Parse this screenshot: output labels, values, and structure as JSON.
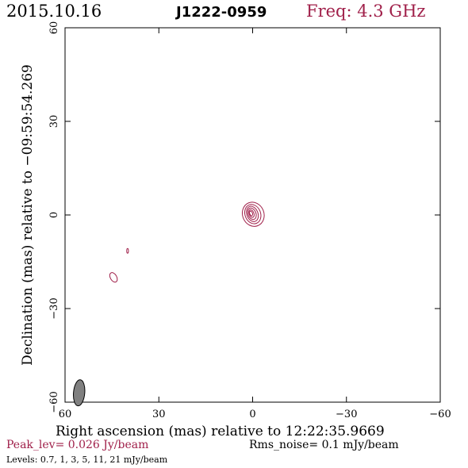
{
  "header": {
    "date": "2015.10.16",
    "source": "J1222-0959",
    "freq": "Freq: 4.3 GHz"
  },
  "colors": {
    "contour": "#a0204a",
    "text": "#000000",
    "beam": "#808080"
  },
  "chart_data": {
    "type": "contour",
    "xlabel": "Right ascension (mas) relative to 12:22:35.9669",
    "ylabel": "Declination (mas) relative to −09:59:54.269",
    "xlim": [
      60,
      -60
    ],
    "ylim": [
      -60,
      60
    ],
    "xticks": [
      60,
      30,
      0,
      -30,
      -60
    ],
    "xtick_labels": [
      "60",
      "30",
      "0",
      "−30",
      "−60"
    ],
    "yticks": [
      -60,
      -30,
      0,
      30,
      60
    ],
    "ytick_labels": [
      "−60",
      "−30",
      "0",
      "30",
      "60"
    ],
    "peak_text": "Peak_lev=  0.026 Jy/beam",
    "rms_text": "Rms_noise=  0.1 mJy/beam",
    "levels_text": "Levels: 0.7,   1,   3,   5,  11,  21 mJy/beam",
    "levels_mJy": [
      0.7,
      1,
      3,
      5,
      11,
      21
    ],
    "beam": {
      "x": 55.5,
      "y": -57,
      "major": 4.2,
      "minor": 1.8,
      "pa_deg": 5
    },
    "components": [
      {
        "x": 0.5,
        "y": 0.5,
        "levels": 6
      },
      {
        "x": 44.5,
        "y": -20,
        "levels": 1
      },
      {
        "x": 40,
        "y": -11.5,
        "levels": 1
      }
    ]
  }
}
